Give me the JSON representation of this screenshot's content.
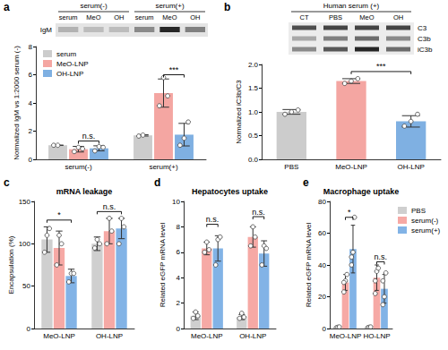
{
  "chart_data": [
    {
      "panel": "a",
      "type": "bar",
      "ylabel": "Normalized IgM vs 1:2000 serum (-)",
      "categories": [
        "serum(-)",
        "serum(+)"
      ],
      "series": [
        {
          "name": "serum",
          "color": "#cccccc",
          "values": [
            1.0,
            1.7
          ],
          "errors": [
            0.0,
            0.05
          ],
          "points": [
            [
              1.0,
              1.0
            ],
            [
              1.65,
              1.72
            ]
          ]
        },
        {
          "name": "MeO-LNP",
          "color": "#f4a6a2",
          "values": [
            0.72,
            4.7
          ],
          "errors": [
            0.2,
            1.0
          ],
          "points": [
            [
              0.55,
              0.85,
              0.75
            ],
            [
              3.8,
              5.8,
              4.5
            ]
          ]
        },
        {
          "name": "OH-LNP",
          "color": "#7fb0e2",
          "values": [
            0.78,
            1.75
          ],
          "errors": [
            0.18,
            0.8
          ],
          "points": [
            [
              0.6,
              0.9,
              0.85
            ],
            [
              1.0,
              1.5,
              2.65
            ]
          ]
        }
      ],
      "ylim": [
        0,
        8
      ],
      "yticks": [
        0,
        2,
        4,
        6,
        8
      ],
      "grid": false,
      "legend": "top-left",
      "annotations": [
        {
          "text": "n.s.",
          "category": "serum(-)",
          "between": [
            "MeO-LNP",
            "OH-LNP"
          ],
          "y": 1.3
        },
        {
          "text": "***",
          "category": "serum(+)",
          "between": [
            "MeO-LNP",
            "OH-LNP"
          ],
          "y": 6.0
        }
      ],
      "blot": {
        "protein": "IgM",
        "groups": [
          {
            "label": "serum(-)",
            "lanes": [
              "serum",
              "MeO",
              "OH"
            ]
          },
          {
            "label": "serum(+)",
            "lanes": [
              "serum",
              "MeO",
              "OH"
            ]
          }
        ]
      }
    },
    {
      "panel": "b",
      "type": "bar",
      "ylabel": "Normalized iC3b/C3",
      "categories": [
        "PBS",
        "MeO-LNP",
        "OH-LNP"
      ],
      "values": [
        1.0,
        1.65,
        0.8
      ],
      "colors": [
        "#cccccc",
        "#f4a6a2",
        "#7fb0e2"
      ],
      "errors": [
        0.05,
        0.05,
        0.12
      ],
      "points": [
        [
          0.95,
          1.0,
          1.04
        ],
        [
          1.6,
          1.65,
          1.7
        ],
        [
          0.7,
          0.8,
          0.95
        ]
      ],
      "ylim": [
        0,
        2
      ],
      "yticks": [
        {
          "value": 0,
          "label": "0.0"
        },
        0.5,
        {
          "value": 1,
          "label": "1.0"
        },
        1.5,
        {
          "value": 2,
          "label": "2.0"
        }
      ],
      "grid": false,
      "annotations": [
        {
          "text": "***",
          "between": [
            "MeO-LNP",
            "OH-LNP"
          ],
          "y": 1.85
        }
      ],
      "blot": {
        "header": "Human serum (+)",
        "lanes": [
          "CT",
          "PBS",
          "MeO",
          "OH"
        ],
        "bands": [
          "C3",
          "C3b",
          "iC3b"
        ]
      }
    },
    {
      "panel": "c",
      "type": "bar",
      "title": "mRNA leakage",
      "ylabel": "Encapsulation (%)",
      "categories": [
        "MeO-LNP",
        "OH-LNP"
      ],
      "series": [
        {
          "name": "PBS",
          "color": "#cfcfcf",
          "values": [
            105,
            100
          ],
          "errors": [
            15,
            8
          ],
          "points": [
            [
              90,
              110,
              118
            ],
            [
              95,
              105,
              100
            ]
          ]
        },
        {
          "name": "serum(-)",
          "color": "#f6a9a5",
          "values": [
            95,
            115
          ],
          "errors": [
            20,
            15
          ],
          "points": [
            [
              75,
              110,
              100
            ],
            [
              100,
              130,
              115
            ]
          ]
        },
        {
          "name": "serum(+)",
          "color": "#82b3e6",
          "values": [
            62,
            118
          ],
          "errors": [
            8,
            12
          ],
          "points": [
            [
              55,
              65,
              65
            ],
            [
              100,
              130,
              120
            ]
          ]
        }
      ],
      "ylim": [
        0,
        150
      ],
      "yticks": [
        0,
        50,
        100,
        150
      ],
      "grid": false,
      "annotations": [
        {
          "text": "*",
          "category": "MeO-LNP",
          "between": [
            "PBS",
            "serum(+)"
          ],
          "y": 128
        },
        {
          "text": "n.s.",
          "category": "OH-LNP",
          "between": [
            "PBS",
            "serum(+)"
          ],
          "y": 138
        }
      ]
    },
    {
      "panel": "d",
      "type": "bar",
      "title": "Hepatocytes uptake",
      "ylabel": "Related eGFP mRNA level",
      "categories": [
        "MeO-LNP",
        "OH-LNP"
      ],
      "series": [
        {
          "name": "PBS",
          "color": "#cfcfcf",
          "values": [
            1.0,
            0.9
          ],
          "errors": [
            0.3,
            0.2
          ],
          "points": [
            [
              0.8,
              1.3,
              1.0
            ],
            [
              0.8,
              1.2,
              0.9
            ]
          ]
        },
        {
          "name": "serum(-)",
          "color": "#f6a9a5",
          "values": [
            6.3,
            7.2
          ],
          "errors": [
            0.5,
            0.8
          ],
          "points": [
            [
              6.0,
              6.8,
              6.2
            ],
            [
              6.5,
              8.0,
              7.2
            ]
          ]
        },
        {
          "name": "serum(+)",
          "color": "#82b3e6",
          "values": [
            6.3,
            5.9
          ],
          "errors": [
            1.0,
            1.0
          ],
          "points": [
            [
              5.0,
              7.0,
              7.2
            ],
            [
              5.0,
              6.5,
              6.3
            ]
          ]
        }
      ],
      "ylim": [
        0,
        10
      ],
      "yticks": [
        0,
        2,
        4,
        6,
        8,
        10
      ],
      "grid": false,
      "annotations": [
        {
          "text": "n.s.",
          "category": "MeO-LNP",
          "between": [
            "serum(-)",
            "serum(+)"
          ],
          "y": 8.2
        },
        {
          "text": "n.s.",
          "category": "OH-LNP",
          "between": [
            "serum(-)",
            "serum(+)"
          ],
          "y": 8.8
        }
      ]
    },
    {
      "panel": "e",
      "type": "bar",
      "title": "Macrophage uptake",
      "ylabel": "Related eGFP mRNA level",
      "categories": [
        "MeO-LNP",
        "HO-LNP"
      ],
      "series": [
        {
          "name": "PBS",
          "color": "#cfcfcf",
          "values": [
            0.8,
            0.8
          ],
          "errors": [
            0.5,
            0.5
          ],
          "points": [
            [
              0.5,
              0.8,
              1.0
            ],
            [
              0.5,
              0.8,
              1.0
            ]
          ]
        },
        {
          "name": "serum(-)",
          "color": "#f6a9a5",
          "values": [
            29,
            32
          ],
          "errors": [
            5,
            8
          ],
          "points": [
            [
              23,
              30,
              34,
              29
            ],
            [
              22,
              36,
              38,
              30
            ]
          ]
        },
        {
          "name": "serum(+)",
          "color": "#82b3e6",
          "values": [
            50,
            25
          ],
          "errors": [
            15,
            9
          ],
          "points": [
            [
              40,
              48,
              70,
              45
            ],
            [
              15,
              20,
              35,
              30
            ]
          ]
        }
      ],
      "ylim": [
        0,
        80
      ],
      "yticks": [
        0,
        20,
        40,
        60,
        80
      ],
      "grid": false,
      "legend": "right",
      "annotations": [
        {
          "text": "*",
          "category": "MeO-LNP",
          "between": [
            "serum(-)",
            "serum(+)"
          ],
          "y": 70
        },
        {
          "text": "n.s.",
          "category": "HO-LNP",
          "between": [
            "serum(-)",
            "serum(+)"
          ],
          "y": 42
        }
      ]
    }
  ]
}
